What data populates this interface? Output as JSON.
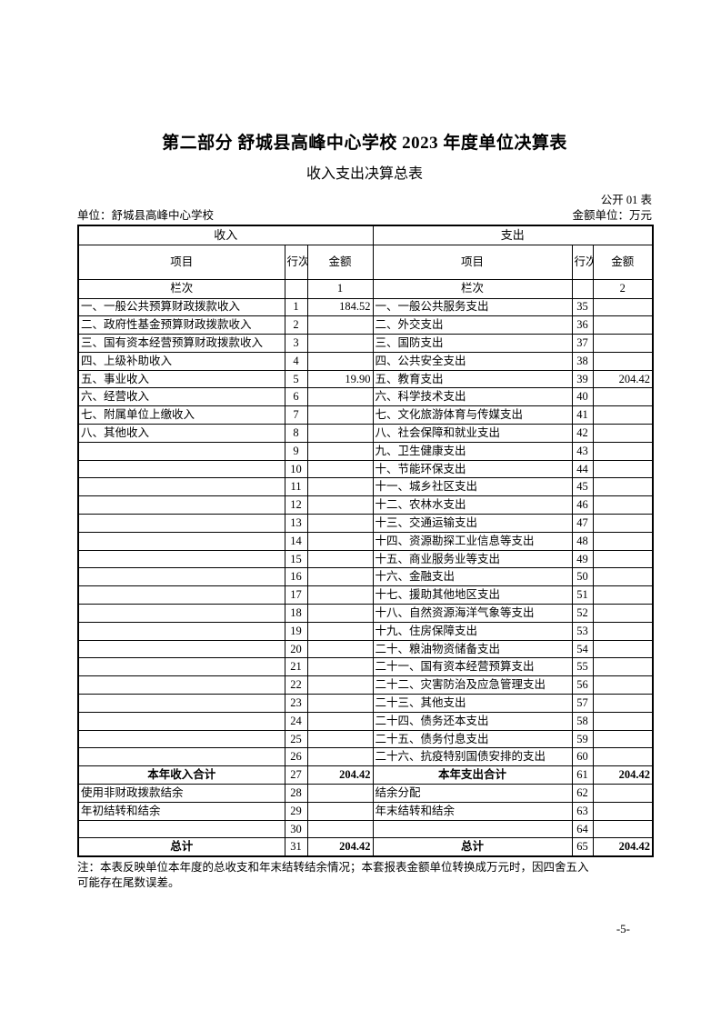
{
  "page": {
    "title": "第二部分 舒城县高峰中心学校 2023 年度单位决算表",
    "subtitle": "收入支出决算总表",
    "table_code": "公开 01 表",
    "unit_line": "单位：舒城县高峰中心学校",
    "amount_unit_line": "金额单位：万元",
    "note_lines": [
      "注：本表反映单位本年度的总收支和年末结转结余情况；本套报表金额单位转换成万元时，因四舍五入",
      "可能存在尾数误差。"
    ],
    "page_number": "-5-"
  },
  "table": {
    "sections": {
      "income": "收入",
      "expense": "支出"
    },
    "columns": {
      "item": "项目",
      "line_no": "行次",
      "amount": "金额"
    },
    "lanci": {
      "label": "栏次",
      "income_no": "1",
      "expense_no": "2"
    },
    "rows": [
      {
        "li": "一、一般公共预算财政拨款收入",
        "ln": "1",
        "la": "184.52",
        "ri": "一、一般公共服务支出",
        "rn": "35",
        "ra": ""
      },
      {
        "li": "二、政府性基金预算财政拨款收入",
        "ln": "2",
        "la": "",
        "ri": "二、外交支出",
        "rn": "36",
        "ra": ""
      },
      {
        "li": "三、国有资本经营预算财政拨款收入",
        "ln": "3",
        "la": "",
        "ri": "三、国防支出",
        "rn": "37",
        "ra": ""
      },
      {
        "li": "四、上级补助收入",
        "ln": "4",
        "la": "",
        "ri": "四、公共安全支出",
        "rn": "38",
        "ra": ""
      },
      {
        "li": "五、事业收入",
        "ln": "5",
        "la": "19.90",
        "ri": "五、教育支出",
        "rn": "39",
        "ra": "204.42"
      },
      {
        "li": "六、经营收入",
        "ln": "6",
        "la": "",
        "ri": "六、科学技术支出",
        "rn": "40",
        "ra": ""
      },
      {
        "li": "七、附属单位上缴收入",
        "ln": "7",
        "la": "",
        "ri": "七、文化旅游体育与传媒支出",
        "rn": "41",
        "ra": ""
      },
      {
        "li": "八、其他收入",
        "ln": "8",
        "la": "",
        "ri": "八、社会保障和就业支出",
        "rn": "42",
        "ra": ""
      },
      {
        "li": "",
        "ln": "9",
        "la": "",
        "ri": "九、卫生健康支出",
        "rn": "43",
        "ra": ""
      },
      {
        "li": "",
        "ln": "10",
        "la": "",
        "ri": "十、节能环保支出",
        "rn": "44",
        "ra": ""
      },
      {
        "li": "",
        "ln": "11",
        "la": "",
        "ri": "十一、城乡社区支出",
        "rn": "45",
        "ra": ""
      },
      {
        "li": "",
        "ln": "12",
        "la": "",
        "ri": "十二、农林水支出",
        "rn": "46",
        "ra": ""
      },
      {
        "li": "",
        "ln": "13",
        "la": "",
        "ri": "十三、交通运输支出",
        "rn": "47",
        "ra": ""
      },
      {
        "li": "",
        "ln": "14",
        "la": "",
        "ri": "十四、资源勘探工业信息等支出",
        "rn": "48",
        "ra": ""
      },
      {
        "li": "",
        "ln": "15",
        "la": "",
        "ri": "十五、商业服务业等支出",
        "rn": "49",
        "ra": ""
      },
      {
        "li": "",
        "ln": "16",
        "la": "",
        "ri": "十六、金融支出",
        "rn": "50",
        "ra": ""
      },
      {
        "li": "",
        "ln": "17",
        "la": "",
        "ri": "十七、援助其他地区支出",
        "rn": "51",
        "ra": ""
      },
      {
        "li": "",
        "ln": "18",
        "la": "",
        "ri": "十八、自然资源海洋气象等支出",
        "rn": "52",
        "ra": ""
      },
      {
        "li": "",
        "ln": "19",
        "la": "",
        "ri": "十九、住房保障支出",
        "rn": "53",
        "ra": ""
      },
      {
        "li": "",
        "ln": "20",
        "la": "",
        "ri": "二十、粮油物资储备支出",
        "rn": "54",
        "ra": ""
      },
      {
        "li": "",
        "ln": "21",
        "la": "",
        "ri": "二十一、国有资本经营预算支出",
        "rn": "55",
        "ra": ""
      },
      {
        "li": "",
        "ln": "22",
        "la": "",
        "ri": "二十二、灾害防治及应急管理支出",
        "rn": "56",
        "ra": ""
      },
      {
        "li": "",
        "ln": "23",
        "la": "",
        "ri": "二十三、其他支出",
        "rn": "57",
        "ra": ""
      },
      {
        "li": "",
        "ln": "24",
        "la": "",
        "ri": "二十四、债务还本支出",
        "rn": "58",
        "ra": ""
      },
      {
        "li": "",
        "ln": "25",
        "la": "",
        "ri": "二十五、债务付息支出",
        "rn": "59",
        "ra": ""
      },
      {
        "li": "",
        "ln": "26",
        "la": "",
        "ri": "二十六、抗疫特别国债安排的支出",
        "rn": "60",
        "ra": ""
      },
      {
        "li": "本年收入合计",
        "ln": "27",
        "la": "204.42",
        "ri": "本年支出合计",
        "rn": "61",
        "ra": "204.42",
        "total": true
      },
      {
        "li": "使用非财政拨款结余",
        "ln": "28",
        "la": "",
        "ri": "结余分配",
        "rn": "62",
        "ra": ""
      },
      {
        "li": "年初结转和结余",
        "ln": "29",
        "la": "",
        "ri": "年末结转和结余",
        "rn": "63",
        "ra": ""
      },
      {
        "li": "",
        "ln": "30",
        "la": "",
        "ri": "",
        "rn": "64",
        "ra": ""
      },
      {
        "li": "总计",
        "ln": "31",
        "la": "204.42",
        "ri": "总计",
        "rn": "65",
        "ra": "204.42",
        "total": true
      }
    ]
  }
}
